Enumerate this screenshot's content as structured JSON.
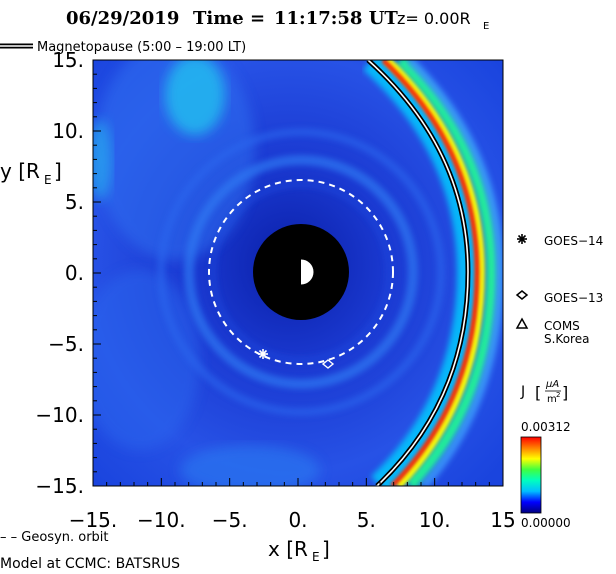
{
  "title": {
    "date": "06/29/2019",
    "time_label": "Time =",
    "time": "11:17:58 UT",
    "z_label": "z= 0.00R",
    "z_sub": "E"
  },
  "legend": {
    "magnetopause": "Magnetopause (5:00 – 19:00 LT)",
    "geosyn": "– – Geosyn. orbit",
    "model": "Model at CCMC: BATSRUS"
  },
  "colorbar": {
    "label": "J",
    "unit_num": "μA",
    "unit_den": "m",
    "unit_den_exp": "2",
    "max_label": "0.00312",
    "min_label": "0.00000",
    "colors": [
      "#00007f",
      "#0000ff",
      "#00bfff",
      "#00ffbf",
      "#40ff40",
      "#ffff00",
      "#ff8000",
      "#ff0000"
    ]
  },
  "colors": {
    "background_field": "#1f3fd8",
    "earth_shadow": "#000000",
    "magnetopause": "#ffffff",
    "geosyn_orbit": "#ffffff"
  },
  "chart_data": {
    "type": "heatmap",
    "quantity": "J",
    "xlabel": "x [R",
    "xlabel_sub": "E",
    "ylabel": "y [R",
    "ylabel_sub": "E",
    "xlim": [
      -15,
      15
    ],
    "ylim": [
      -15,
      15
    ],
    "x_ticks": [
      -15,
      -10,
      -5,
      0,
      5,
      10,
      15
    ],
    "x_tick_labels": [
      "−15.",
      "−10.",
      "−5.",
      "0.",
      "5.",
      "10.",
      "15"
    ],
    "y_ticks": [
      15,
      10,
      5,
      0,
      -5,
      -10,
      -15
    ],
    "y_tick_labels": [
      "15.",
      "10.",
      "5.",
      "0.",
      "−5.",
      "−10.",
      "−15."
    ],
    "color_range": [
      0.0,
      0.00312
    ],
    "geosyn_orbit_radius": 6.6,
    "inner_boundary_radius": 3.5,
    "magnetopause_subsolar_x": 12.3,
    "satellites": [
      {
        "name": "GOES−14",
        "marker": "asterisk",
        "x": -2.6,
        "y": -5.7
      },
      {
        "name": "GOES−13",
        "marker": "diamond",
        "x": 1.9,
        "y": -6.3
      },
      {
        "name": "COMS\nS.Korea",
        "marker": "triangle",
        "x": null,
        "y": null
      }
    ],
    "satellite_labels": [
      "GOES−14",
      "GOES−13",
      "COMS",
      "S.Korea"
    ]
  }
}
